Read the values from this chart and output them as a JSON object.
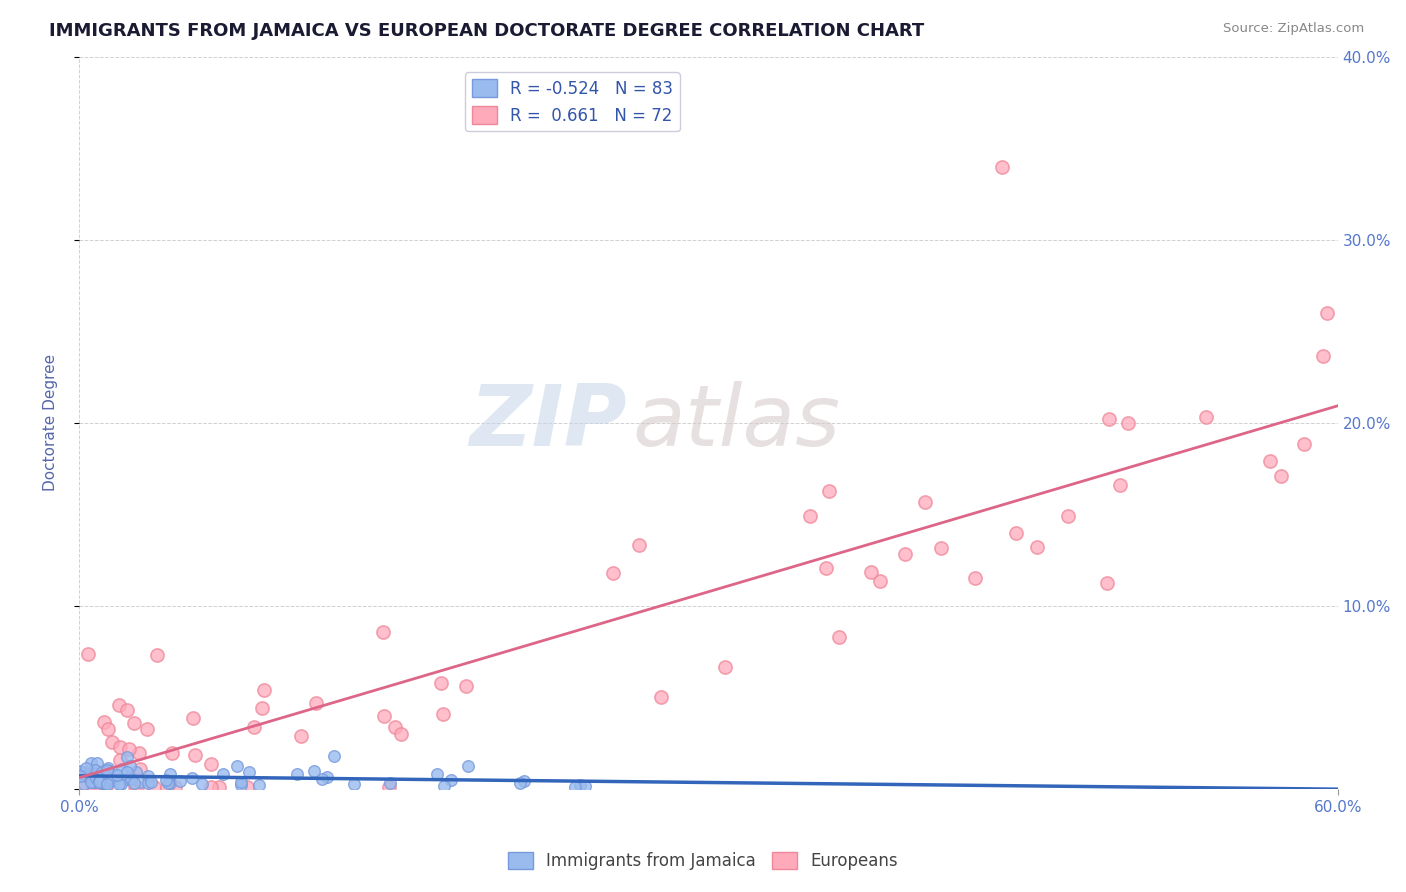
{
  "title": "IMMIGRANTS FROM JAMAICA VS EUROPEAN DOCTORATE DEGREE CORRELATION CHART",
  "source": "Source: ZipAtlas.com",
  "ylabel": "Doctorate Degree",
  "legend_labels": [
    "Immigrants from Jamaica",
    "Europeans"
  ],
  "legend_r": [
    -0.524,
    0.661
  ],
  "legend_n": [
    83,
    72
  ],
  "xlim": [
    0.0,
    0.6
  ],
  "ylim": [
    0.0,
    0.4
  ],
  "xtick_labels_edge": [
    "0.0%",
    "60.0%"
  ],
  "xtick_vals_edge": [
    0.0,
    0.6
  ],
  "ytick_labels": [
    "",
    "10.0%",
    "20.0%",
    "30.0%",
    "40.0%"
  ],
  "ytick_vals": [
    0.0,
    0.1,
    0.2,
    0.3,
    0.4
  ],
  "tick_color": "#5577cc",
  "grid_color": "#cccccc",
  "background_color": "#ffffff",
  "blue_marker_color": "#99bbee",
  "blue_edge_color": "#7799dd",
  "blue_line_color": "#3366bb",
  "pink_marker_color": "#ffaabb",
  "pink_edge_color": "#ee8899",
  "pink_line_color": "#dd6688",
  "ylabel_color": "#5566aa",
  "title_color": "#1a1a33",
  "source_color": "#888888",
  "watermark_zip_color": "#c5d5e8",
  "watermark_atlas_color": "#d5c8c8",
  "legend_text_color": "#3355aa",
  "legend_edge_color": "#ccccdd"
}
